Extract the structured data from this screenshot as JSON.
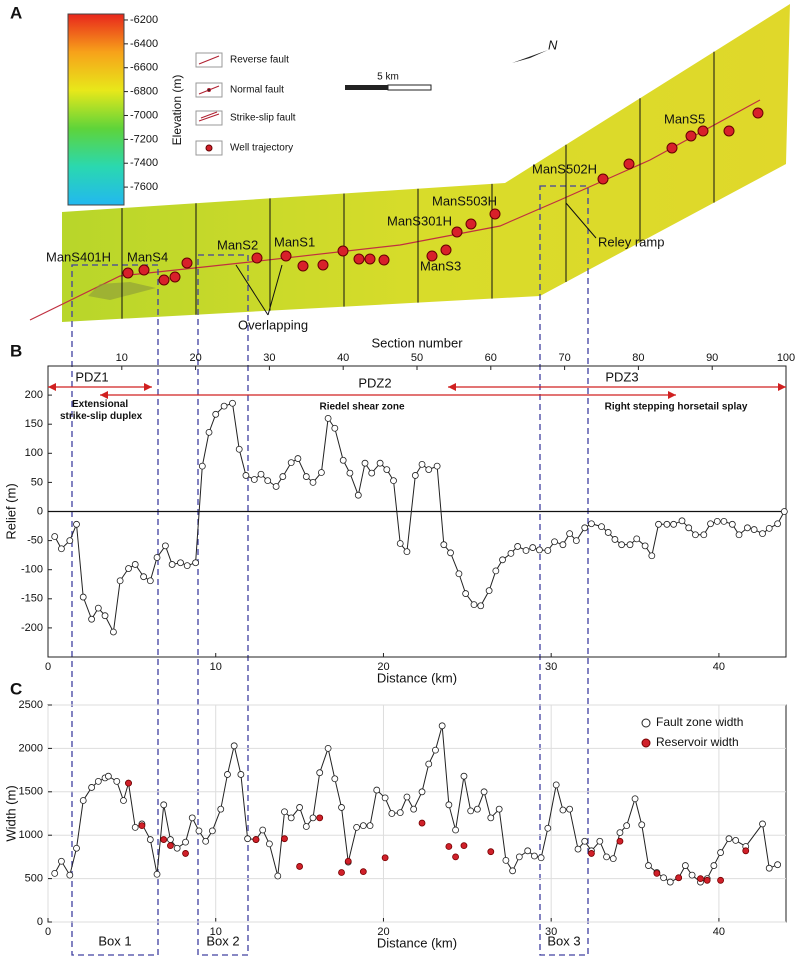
{
  "map": {
    "panel": "A",
    "colorbar": {
      "label": "Elevation (m)",
      "lim": [
        -7750,
        -6150
      ],
      "ticks": [
        -6200,
        -6400,
        -6600,
        -6800,
        -7000,
        -7200,
        -7400,
        -7600
      ]
    },
    "legend": [
      "Reverse fault",
      "Normal fault",
      "Strike-slip fault",
      "Well trajectory"
    ],
    "scale": "5 km",
    "north": "N",
    "wells": [
      "ManS401H",
      "ManS4",
      "ManS2",
      "ManS1",
      "ManS301H",
      "ManS503H",
      "ManS3",
      "ManS502H",
      "ManS5"
    ],
    "annotations": [
      "Reley ramp",
      "Overlapping"
    ]
  },
  "boxes": [
    "Box 1",
    "Box 2",
    "Box 3"
  ],
  "chart_data": [
    {
      "type": "line",
      "panel": "B",
      "xlabel": "Distance (km)",
      "ylabel": "Relief (m)",
      "x2label": "Section number",
      "xlim": [
        0,
        44
      ],
      "xticks": [
        0,
        10,
        20,
        30,
        40
      ],
      "x2lim": [
        0,
        100
      ],
      "x2ticks": [
        10,
        20,
        30,
        40,
        50,
        60,
        70,
        80,
        90,
        100
      ],
      "ylim": [
        -250,
        250
      ],
      "yticks": [
        -200,
        -150,
        -100,
        -50,
        0,
        50,
        100,
        150,
        200
      ],
      "grid": false,
      "color": "#222",
      "zones": [
        "PDZ1",
        "PDZ2",
        "PDZ3"
      ],
      "annotations": [
        "Extensional\nstrike-slip duplex",
        "Riedel shear zone",
        "Right stepping horsetail splay"
      ],
      "x": [
        0.4,
        0.8,
        1.3,
        1.7,
        2.1,
        2.6,
        3.0,
        3.4,
        3.9,
        4.3,
        4.8,
        5.2,
        5.7,
        6.1,
        6.5,
        7.0,
        7.4,
        7.9,
        8.3,
        8.8,
        9.2,
        9.6,
        10.0,
        10.5,
        11.0,
        11.4,
        11.8,
        12.3,
        12.7,
        13.1,
        13.6,
        14.0,
        14.5,
        14.9,
        15.4,
        15.8,
        16.3,
        16.7,
        17.1,
        17.6,
        18.0,
        18.5,
        18.9,
        19.3,
        19.8,
        20.2,
        20.6,
        21.0,
        21.4,
        21.9,
        22.3,
        22.7,
        23.2,
        23.6,
        24.0,
        24.5,
        24.9,
        25.4,
        25.8,
        26.3,
        26.7,
        27.1,
        27.6,
        28.0,
        28.5,
        28.9,
        29.3,
        29.8,
        30.2,
        30.7,
        31.1,
        31.5,
        32.0,
        32.4,
        33.0,
        33.4,
        33.8,
        34.2,
        34.7,
        35.1,
        35.6,
        36.0,
        36.4,
        36.9,
        37.3,
        37.8,
        38.2,
        38.6,
        39.1,
        39.5,
        39.9,
        40.3,
        40.8,
        41.2,
        41.7,
        42.1,
        42.6,
        43.0,
        43.5,
        43.9
      ],
      "values": [
        -43,
        -64,
        -50,
        -22,
        -147,
        -185,
        -166,
        -179,
        -207,
        -119,
        -98,
        -91,
        -112,
        -119,
        -79,
        -59,
        -91,
        -88,
        -93,
        -88,
        78,
        136,
        167,
        181,
        186,
        107,
        62,
        55,
        64,
        53,
        43,
        60,
        84,
        91,
        60,
        50,
        67,
        160,
        143,
        88,
        66,
        28,
        83,
        66,
        83,
        72,
        53,
        -55,
        -69,
        62,
        81,
        72,
        78,
        -57,
        -71,
        -107,
        -141,
        -160,
        -162,
        -136,
        -102,
        -83,
        -72,
        -60,
        -67,
        -62,
        -66,
        -67,
        -52,
        -57,
        -38,
        -50,
        -28,
        -21,
        -26,
        -36,
        -48,
        -57,
        -57,
        -47,
        -59,
        -76,
        -22,
        -22,
        -22,
        -16,
        -28,
        -40,
        -40,
        -21,
        -17,
        -17,
        -22,
        -40,
        -28,
        -31,
        -38,
        -29,
        -21,
        0
      ]
    },
    {
      "type": "line",
      "panel": "C",
      "xlabel": "Distance (km)",
      "ylabel": "Width (m)",
      "xlim": [
        0,
        44
      ],
      "xticks": [
        0,
        10,
        20,
        30,
        40
      ],
      "ylim": [
        0,
        2500
      ],
      "yticks": [
        0,
        500,
        1000,
        1500,
        2000,
        2500
      ],
      "grid": true,
      "legend": "upper right",
      "series": [
        {
          "name": "Fault zone width",
          "color": "#222",
          "type": "line",
          "x": [
            0.4,
            0.8,
            1.3,
            1.7,
            2.1,
            2.6,
            3.0,
            3.4,
            3.6,
            4.1,
            4.5,
            4.8,
            5.2,
            5.6,
            6.1,
            6.5,
            6.9,
            7.3,
            7.7,
            8.2,
            8.6,
            9.0,
            9.4,
            9.8,
            10.3,
            10.7,
            11.1,
            11.5,
            11.9,
            12.4,
            12.8,
            13.2,
            13.7,
            14.1,
            14.5,
            15.0,
            15.4,
            15.8,
            16.2,
            16.7,
            17.1,
            17.5,
            17.9,
            18.4,
            18.8,
            19.2,
            19.6,
            20.1,
            20.5,
            21.0,
            21.4,
            21.8,
            22.3,
            22.7,
            23.1,
            23.5,
            23.9,
            24.3,
            24.8,
            25.2,
            25.6,
            26.0,
            26.4,
            26.9,
            27.3,
            27.7,
            28.1,
            28.6,
            29.0,
            29.4,
            29.8,
            30.3,
            30.7,
            31.1,
            31.6,
            32.0,
            32.4,
            32.9,
            33.3,
            33.7,
            34.1,
            34.5,
            35.0,
            35.4,
            35.8,
            36.3,
            36.7,
            37.1,
            37.6,
            38.0,
            38.4,
            38.9,
            39.3,
            39.7,
            40.1,
            40.6,
            41.0,
            41.6,
            42.6,
            43.0,
            43.5
          ],
          "values": [
            560,
            700,
            540,
            850,
            1400,
            1550,
            1620,
            1660,
            1680,
            1620,
            1400,
            1600,
            1090,
            1130,
            950,
            550,
            1350,
            950,
            850,
            920,
            1200,
            1050,
            930,
            1050,
            1300,
            1700,
            2030,
            1700,
            960,
            950,
            1060,
            900,
            530,
            1270,
            1200,
            1320,
            1100,
            1200,
            1720,
            2000,
            1650,
            1320,
            690,
            1090,
            1110,
            1110,
            1520,
            1430,
            1250,
            1260,
            1440,
            1300,
            1500,
            1820,
            1980,
            2260,
            1350,
            1060,
            1680,
            1280,
            1300,
            1500,
            1200,
            1300,
            710,
            590,
            750,
            820,
            760,
            740,
            1080,
            1580,
            1290,
            1300,
            840,
            930,
            820,
            930,
            750,
            730,
            1030,
            1110,
            1420,
            1120,
            650,
            570,
            510,
            460,
            510,
            650,
            540,
            460,
            500,
            650,
            800,
            960,
            940,
            870,
            1130,
            620,
            660
          ]
        },
        {
          "name": "Reservoir width",
          "color": "#d0202a",
          "type": "scatter",
          "x": [
            4.8,
            5.6,
            6.9,
            7.3,
            8.2,
            12.4,
            14.1,
            15.0,
            16.2,
            17.5,
            17.9,
            18.8,
            20.1,
            22.3,
            23.9,
            24.3,
            24.8,
            26.4,
            32.4,
            34.1,
            36.3,
            37.6,
            38.9,
            39.3,
            40.1,
            41.6
          ],
          "values": [
            1600,
            1110,
            950,
            880,
            790,
            950,
            960,
            640,
            1200,
            570,
            700,
            580,
            740,
            1140,
            870,
            750,
            880,
            810,
            790,
            930,
            560,
            510,
            500,
            480,
            480,
            820
          ]
        }
      ]
    }
  ]
}
